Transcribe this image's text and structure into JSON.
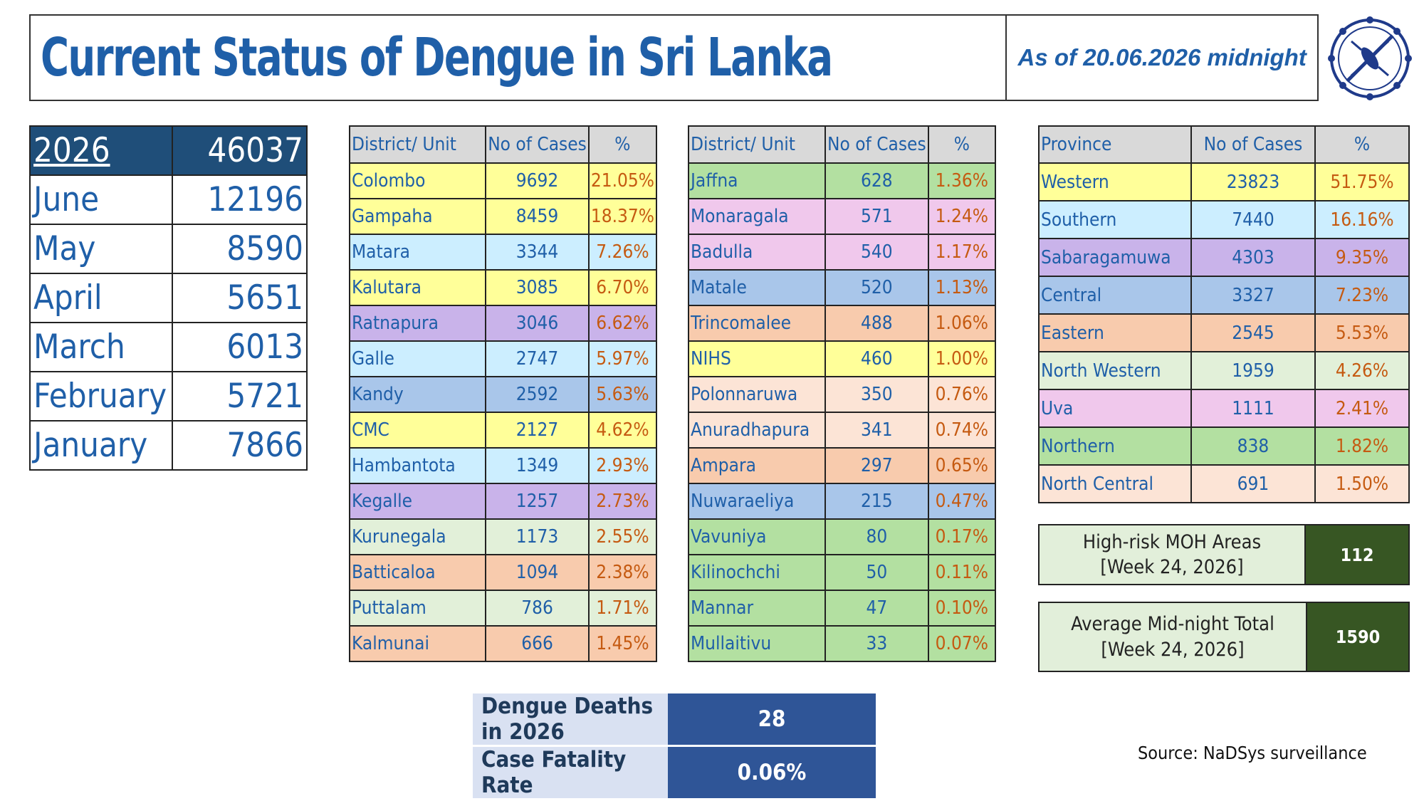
{
  "header": {
    "title": "Current Status of Dengue in Sri Lanka",
    "date": "As of 20.06.2026 midnight"
  },
  "monthly": [
    {
      "label": "2026",
      "value": "46037"
    },
    {
      "label": "June",
      "value": "12196"
    },
    {
      "label": "May",
      "value": "8590"
    },
    {
      "label": "April",
      "value": "5651"
    },
    {
      "label": "March",
      "value": "6013"
    },
    {
      "label": "February",
      "value": "5721"
    },
    {
      "label": "January",
      "value": "7866"
    }
  ],
  "district_table_1": {
    "headers": [
      "District/ Unit",
      "No of Cases",
      "%"
    ],
    "rows": [
      {
        "name": "Colombo",
        "cases": "9692",
        "pct": "21.05%",
        "color": "#ffff99"
      },
      {
        "name": "Gampaha",
        "cases": "8459",
        "pct": "18.37%",
        "color": "#ffff99"
      },
      {
        "name": "Matara",
        "cases": "3344",
        "pct": "7.26%",
        "color": "#cceeff"
      },
      {
        "name": "Kalutara",
        "cases": "3085",
        "pct": "6.70%",
        "color": "#ffff99"
      },
      {
        "name": "Ratnapura",
        "cases": "3046",
        "pct": "6.62%",
        "color": "#c9b3ea"
      },
      {
        "name": "Galle",
        "cases": "2747",
        "pct": "5.97%",
        "color": "#cceeff"
      },
      {
        "name": "Kandy",
        "cases": "2592",
        "pct": "5.63%",
        "color": "#a9c6ea"
      },
      {
        "name": "CMC",
        "cases": "2127",
        "pct": "4.62%",
        "color": "#ffff99"
      },
      {
        "name": "Hambantota",
        "cases": "1349",
        "pct": "2.93%",
        "color": "#cceeff"
      },
      {
        "name": "Kegalle",
        "cases": "1257",
        "pct": "2.73%",
        "color": "#c9b3ea"
      },
      {
        "name": "Kurunegala",
        "cases": "1173",
        "pct": "2.55%",
        "color": "#e2f0d9"
      },
      {
        "name": "Batticaloa",
        "cases": "1094",
        "pct": "2.38%",
        "color": "#f8cbad"
      },
      {
        "name": "Puttalam",
        "cases": "786",
        "pct": "1.71%",
        "color": "#e2f0d9"
      },
      {
        "name": "Kalmunai",
        "cases": "666",
        "pct": "1.45%",
        "color": "#f8cbad"
      }
    ]
  },
  "district_table_2": {
    "headers": [
      "District/ Unit",
      "No of Cases",
      "%"
    ],
    "rows": [
      {
        "name": "Jaffna",
        "cases": "628",
        "pct": "1.36%",
        "color": "#b3e0a1"
      },
      {
        "name": "Monaragala",
        "cases": "571",
        "pct": "1.24%",
        "color": "#f0c8ec"
      },
      {
        "name": "Badulla",
        "cases": "540",
        "pct": "1.17%",
        "color": "#f0c8ec"
      },
      {
        "name": "Matale",
        "cases": "520",
        "pct": "1.13%",
        "color": "#a9c6ea"
      },
      {
        "name": "Trincomalee",
        "cases": "488",
        "pct": "1.06%",
        "color": "#f8cbad"
      },
      {
        "name": "NIHS",
        "cases": "460",
        "pct": "1.00%",
        "color": "#ffff99"
      },
      {
        "name": "Polonnaruwa",
        "cases": "350",
        "pct": "0.76%",
        "color": "#fce4d6"
      },
      {
        "name": "Anuradhapura",
        "cases": "341",
        "pct": "0.74%",
        "color": "#fce4d6"
      },
      {
        "name": "Ampara",
        "cases": "297",
        "pct": "0.65%",
        "color": "#f8cbad"
      },
      {
        "name": "Nuwaraeliya",
        "cases": "215",
        "pct": "0.47%",
        "color": "#a9c6ea"
      },
      {
        "name": "Vavuniya",
        "cases": "80",
        "pct": "0.17%",
        "color": "#b3e0a1"
      },
      {
        "name": "Kilinochchi",
        "cases": "50",
        "pct": "0.11%",
        "color": "#b3e0a1"
      },
      {
        "name": "Mannar",
        "cases": "47",
        "pct": "0.10%",
        "color": "#b3e0a1"
      },
      {
        "name": "Mullaitivu",
        "cases": "33",
        "pct": "0.07%",
        "color": "#b3e0a1"
      }
    ]
  },
  "province_table": {
    "headers": [
      "Province",
      "No of Cases",
      "%"
    ],
    "rows": [
      {
        "name": "Western",
        "cases": "23823",
        "pct": "51.75%",
        "color": "#ffff99"
      },
      {
        "name": "Southern",
        "cases": "7440",
        "pct": "16.16%",
        "color": "#cceeff"
      },
      {
        "name": "Sabaragamuwa",
        "cases": "4303",
        "pct": "9.35%",
        "color": "#c9b3ea"
      },
      {
        "name": "Central",
        "cases": "3327",
        "pct": "7.23%",
        "color": "#a9c6ea"
      },
      {
        "name": "Eastern",
        "cases": "2545",
        "pct": "5.53%",
        "color": "#f8cbad"
      },
      {
        "name": "North Western",
        "cases": "1959",
        "pct": "4.26%",
        "color": "#e2f0d9"
      },
      {
        "name": "Uva",
        "cases": "1111",
        "pct": "2.41%",
        "color": "#f0c8ec"
      },
      {
        "name": "Northern",
        "cases": "838",
        "pct": "1.82%",
        "color": "#b3e0a1"
      },
      {
        "name": "North Central",
        "cases": "691",
        "pct": "1.50%",
        "color": "#fce4d6"
      }
    ]
  },
  "high_risk": {
    "label_line1": "High-risk MOH Areas",
    "label_line2": "[Week 24, 2026]",
    "value": "112"
  },
  "avg_midnight": {
    "label_line1": "Average Mid-night Total",
    "label_line2": "[Week 24, 2026]",
    "value": "1590"
  },
  "deaths": [
    {
      "label": "Dengue Deaths in 2026",
      "value": "28"
    },
    {
      "label": "Case Fatality Rate",
      "value": "0.06%"
    }
  ],
  "source": "Source: NaDSys surveillance"
}
